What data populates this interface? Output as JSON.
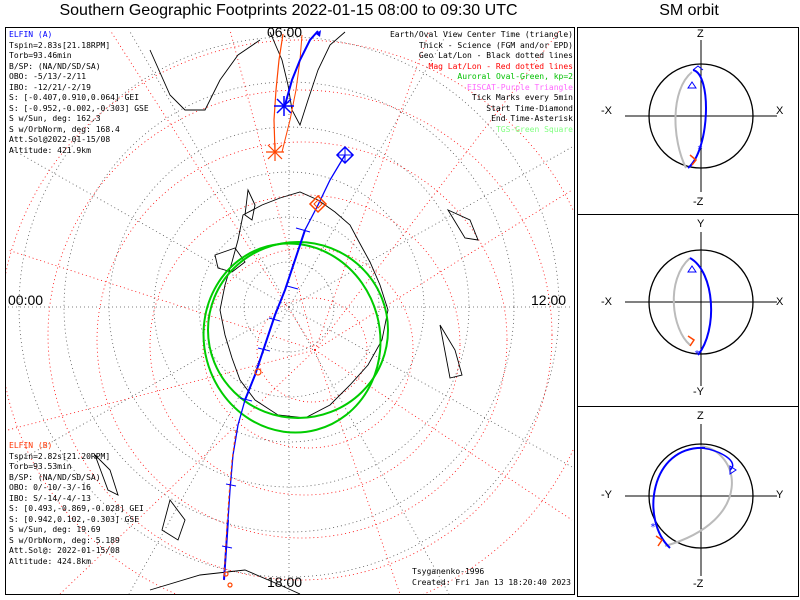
{
  "title": "Southern Geographic Footprints 2022-01-15 08:00 to 09:30 UTC",
  "sm_title": "SM orbit",
  "clock_labels": {
    "top": "06:00",
    "left": "00:00",
    "right": "12:00",
    "bottom": "18:00"
  },
  "elfin_a": {
    "name": "ELFIN (A)",
    "color": "#0000ff",
    "lines": [
      "Tspin=2.83s[21.18RPM]",
      "Torb=93.46min",
      "B/SP: (NA/ND/SD/SA)",
      "OBO: -5/13/-2/11",
      "IBO: -12/21/-2/19",
      "S: [-0.407,0.910,0.064] GEI",
      "S: [-0.952,-0.002,-0.303] GSE",
      "S w/Sun, deg: 162.3",
      "S w/OrbNorm, deg: 168.4",
      "Att.Sol@2022-01-15/08",
      "Altitude: 421.9km"
    ]
  },
  "elfin_b": {
    "name": "ELFIN (B)",
    "color": "#ff3300",
    "lines": [
      "Tspin=2.82s[21.20RPM]",
      "Torb=93.53min",
      "B/SP: (NA/ND/SD/SA)",
      "OBO: 0/-10/-3/-16",
      "IBO: S/-14/-4/-13",
      "S: [0.493,-0.869,-0.028] GEI",
      "S: [0.942,0.102,-0.303] GSE",
      "S w/Sun, deg: 19.69",
      "S w/OrbNorm, deg: 5.189",
      "Att.Sol@: 2022-01-15/08",
      "Altitude: 424.8km"
    ]
  },
  "legend": [
    {
      "text": "Earth/Oval View Center Time (triangle)",
      "color": "#000000"
    },
    {
      "text": "Thick - Science (FGM and/or EPD)",
      "color": "#000000"
    },
    {
      "text": "Geo Lat/Lon - Black dotted lines",
      "color": "#000000"
    },
    {
      "text": "Mag Lat/Lon - Red dotted lines",
      "color": "#ff0000"
    },
    {
      "text": "Auroral Oval-Green, kp=2",
      "color": "#00c000"
    },
    {
      "text": "EISCAT-Purple Triangle",
      "color": "#ff66ff"
    },
    {
      "text": "Tick Marks every 5min",
      "color": "#000000"
    },
    {
      "text": "Start Time-Diamond",
      "color": "#000000"
    },
    {
      "text": "End Time-Asterisk",
      "color": "#000000"
    },
    {
      "text": "TGS-Green Square",
      "color": "#80ff80"
    }
  ],
  "footer": {
    "credit": "Tsyganenko-1996",
    "created": "Created: Fri Jan 13 18:20:40 2023"
  },
  "sm_panels": [
    {
      "top": "Z",
      "bottom": "-Z",
      "left": "-X",
      "right": "X"
    },
    {
      "top": "Y",
      "bottom": "-Y",
      "left": "-X",
      "right": "X"
    },
    {
      "top": "Z",
      "bottom": "-Z",
      "left": "-Y",
      "right": "Y"
    }
  ],
  "colors": {
    "trace_a": "#0000ff",
    "trace_b": "#ff4400",
    "oval": "#00cc00",
    "mag_grid": "#ff0000",
    "geo_grid": "#000000"
  }
}
